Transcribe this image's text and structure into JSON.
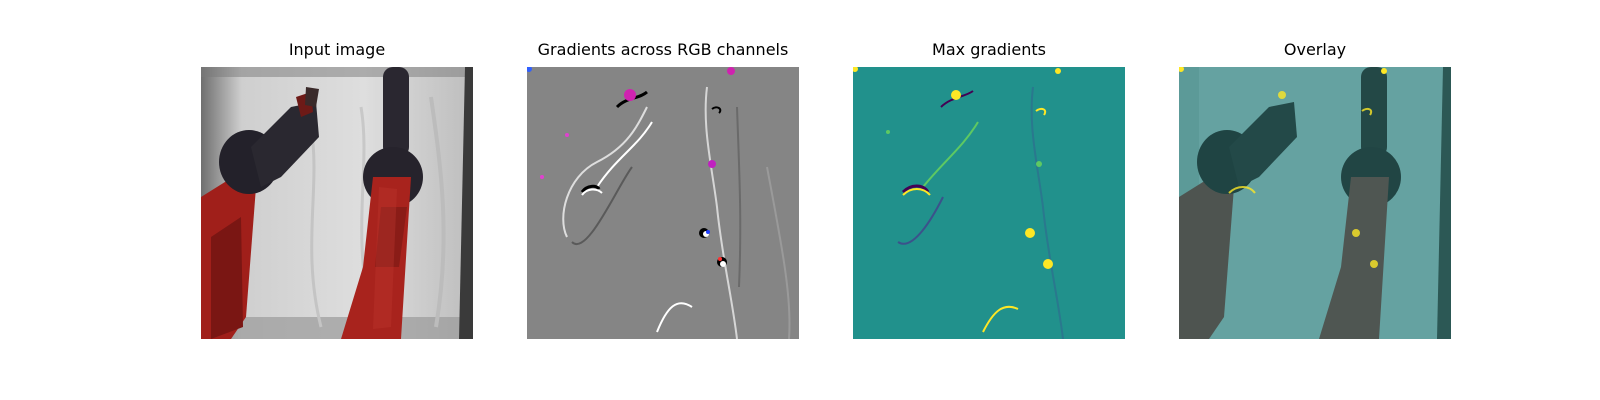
{
  "panels": [
    {
      "title": "Input image"
    },
    {
      "title": "Gradients across RGB channels"
    },
    {
      "title": "Max gradients"
    },
    {
      "title": "Overlay"
    }
  ],
  "colors": {
    "background": "#ffffff",
    "gradient_gray": "#808080",
    "viridis_teal": "#21918c",
    "viridis_yellow": "#fde725",
    "robot_red": "#a01f1a",
    "robot_dark": "#23212a",
    "backdrop_white": "#dcdcdc"
  }
}
